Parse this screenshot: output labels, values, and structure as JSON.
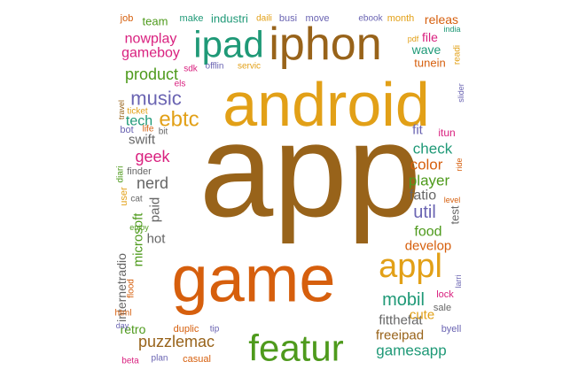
{
  "colors": {
    "brown": "#98631A",
    "gold": "#E2A017",
    "orange": "#D65F0D",
    "green": "#4E9A1C",
    "purple": "#6A64B2",
    "teal": "#1F9977",
    "magenta": "#D9217F",
    "gray": "#666666"
  },
  "words": [
    {
      "text": "app",
      "color": "brown"
    },
    {
      "text": "android",
      "color": "gold"
    },
    {
      "text": "game",
      "color": "orange"
    },
    {
      "text": "iphon",
      "color": "brown"
    },
    {
      "text": "ipad",
      "color": "teal"
    },
    {
      "text": "featur",
      "color": "green"
    },
    {
      "text": "appl",
      "color": "gold"
    },
    {
      "text": "ebtc",
      "color": "gold"
    },
    {
      "text": "music",
      "color": "purple"
    },
    {
      "text": "product",
      "color": "green"
    },
    {
      "text": "gameboy",
      "color": "magenta"
    },
    {
      "text": "nowplay",
      "color": "magenta"
    },
    {
      "text": "puzzlemac",
      "color": "brown"
    },
    {
      "text": "gamesapp",
      "color": "teal"
    },
    {
      "text": "mobil",
      "color": "teal"
    },
    {
      "text": "util",
      "color": "purple"
    },
    {
      "text": "color",
      "color": "orange"
    },
    {
      "text": "player",
      "color": "green"
    },
    {
      "text": "check",
      "color": "teal"
    },
    {
      "text": "food",
      "color": "green"
    },
    {
      "text": "geek",
      "color": "magenta"
    },
    {
      "text": "nerd",
      "color": "gray"
    },
    {
      "text": "tech",
      "color": "teal"
    },
    {
      "text": "swift",
      "color": "gray"
    },
    {
      "text": "fit",
      "color": "purple"
    },
    {
      "text": "fatio",
      "color": "gray"
    },
    {
      "text": "develop",
      "color": "orange"
    },
    {
      "text": "freeipad",
      "color": "brown"
    },
    {
      "text": "fitthefat",
      "color": "gray"
    },
    {
      "text": "cute",
      "color": "gold"
    },
    {
      "text": "retro",
      "color": "green"
    },
    {
      "text": "hot",
      "color": "gray"
    },
    {
      "text": "paid",
      "color": "gray"
    },
    {
      "text": "microsoft",
      "color": "green"
    },
    {
      "text": "internetradio",
      "color": "gray"
    },
    {
      "text": "releas",
      "color": "orange"
    },
    {
      "text": "file",
      "color": "magenta"
    },
    {
      "text": "wave",
      "color": "teal"
    },
    {
      "text": "tunein",
      "color": "orange"
    },
    {
      "text": "team",
      "color": "green"
    },
    {
      "text": "industri",
      "color": "teal"
    },
    {
      "text": "move",
      "color": "purple"
    },
    {
      "text": "month",
      "color": "gold"
    },
    {
      "text": "busi",
      "color": "purple"
    },
    {
      "text": "make",
      "color": "teal"
    },
    {
      "text": "job",
      "color": "orange"
    },
    {
      "text": "daili",
      "color": "gold"
    },
    {
      "text": "ebook",
      "color": "purple"
    },
    {
      "text": "india",
      "color": "teal"
    },
    {
      "text": "pdf",
      "color": "gold"
    },
    {
      "text": "readi",
      "color": "gold"
    },
    {
      "text": "sdk",
      "color": "magenta"
    },
    {
      "text": "offlin",
      "color": "purple"
    },
    {
      "text": "servic",
      "color": "gold"
    },
    {
      "text": "els",
      "color": "magenta"
    },
    {
      "text": "travel",
      "color": "brown"
    },
    {
      "text": "ticket",
      "color": "gold"
    },
    {
      "text": "life",
      "color": "orange"
    },
    {
      "text": "bot",
      "color": "purple"
    },
    {
      "text": "bit",
      "color": "gray"
    },
    {
      "text": "itun",
      "color": "magenta"
    },
    {
      "text": "slider",
      "color": "purple"
    },
    {
      "text": "finder",
      "color": "gray"
    },
    {
      "text": "diari",
      "color": "green"
    },
    {
      "text": "user",
      "color": "gold"
    },
    {
      "text": "cat",
      "color": "gray"
    },
    {
      "text": "enjoy",
      "color": "green"
    },
    {
      "text": "ride",
      "color": "orange"
    },
    {
      "text": "level",
      "color": "orange"
    },
    {
      "text": "test",
      "color": "gray"
    },
    {
      "text": "flood",
      "color": "orange"
    },
    {
      "text": "html",
      "color": "orange"
    },
    {
      "text": "larri",
      "color": "purple"
    },
    {
      "text": "lock",
      "color": "magenta"
    },
    {
      "text": "sale",
      "color": "gray"
    },
    {
      "text": "byell",
      "color": "purple"
    },
    {
      "text": "duplic",
      "color": "orange"
    },
    {
      "text": "tip",
      "color": "purple"
    },
    {
      "text": "day",
      "color": "purple"
    },
    {
      "text": "beta",
      "color": "magenta"
    },
    {
      "text": "plan",
      "color": "purple"
    },
    {
      "text": "casual",
      "color": "orange"
    }
  ]
}
